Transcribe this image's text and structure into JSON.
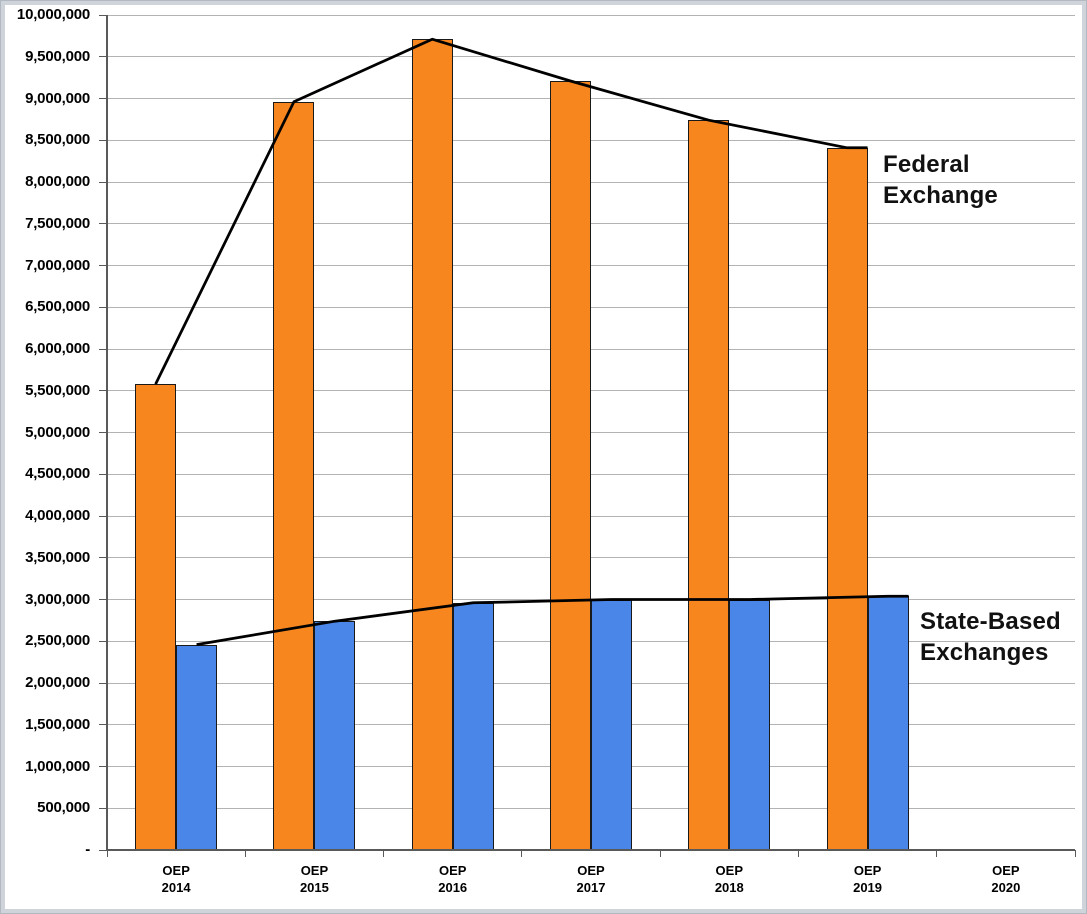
{
  "chart_data": {
    "type": "bar",
    "title": "",
    "xlabel": "",
    "ylabel": "",
    "categories": [
      "OEP 2014",
      "OEP 2015",
      "OEP 2016",
      "OEP 2017",
      "OEP 2018",
      "OEP 2019",
      "OEP 2020"
    ],
    "category_lines": [
      [
        "OEP",
        "2014"
      ],
      [
        "OEP",
        "2015"
      ],
      [
        "OEP",
        "2016"
      ],
      [
        "OEP",
        "2017"
      ],
      [
        "OEP",
        "2018"
      ],
      [
        "OEP",
        "2019"
      ],
      [
        "OEP",
        "2020"
      ]
    ],
    "series": [
      {
        "name": "Federal Exchange",
        "color": "#F6861D",
        "values": [
          5580000,
          8960000,
          9710000,
          9210000,
          8740000,
          8410000,
          null
        ]
      },
      {
        "name": "State-Based Exchanges",
        "color": "#4A86E8",
        "values": [
          2460000,
          2740000,
          2960000,
          3000000,
          3000000,
          3040000,
          null
        ]
      }
    ],
    "trend_lines": [
      {
        "follows_series": 0,
        "color": "#000000"
      },
      {
        "follows_series": 1,
        "color": "#000000"
      }
    ],
    "ylim": [
      0,
      10000000
    ],
    "ytick_step": 500000,
    "ytick_labels": [
      "10,000,000",
      "9,500,000",
      "9,000,000",
      "8,500,000",
      "8,000,000",
      "7,500,000",
      "7,000,000",
      "6,500,000",
      "6,000,000",
      "5,500,000",
      "5,000,000",
      "4,500,000",
      "4,000,000",
      "3,500,000",
      "3,000,000",
      "2,500,000",
      "2,000,000",
      "1,500,000",
      "1,000,000",
      "500,000",
      "-"
    ],
    "grid": true,
    "legend_position": "inline-right-labels"
  },
  "annotations": {
    "federal_exchange": {
      "line1": "Federal",
      "line2": "Exchange"
    },
    "state_based": {
      "line1": "State-Based",
      "line2": "Exchanges"
    }
  },
  "colors": {
    "federal_bar": "#F6861D",
    "state_bar": "#4A86E8",
    "bar_outline": "#1a1a1a",
    "trend_line": "#000000",
    "gridline": "#b3b3b3",
    "axis": "#595959",
    "frame_border": "#ced4da"
  }
}
